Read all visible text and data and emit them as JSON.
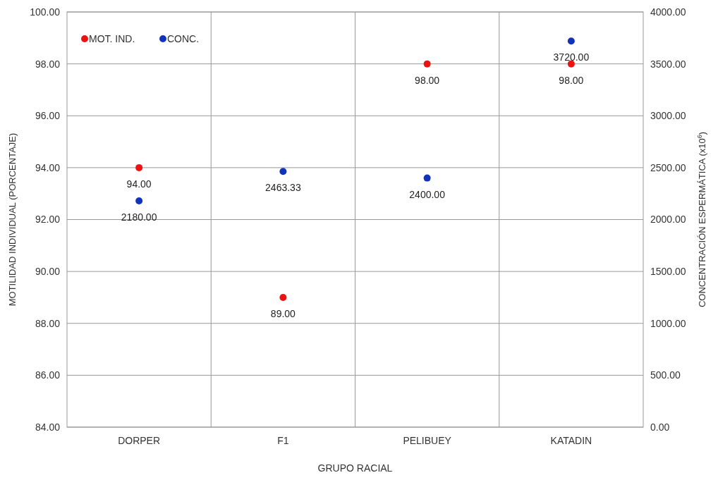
{
  "chart_data": {
    "type": "scatter",
    "xlabel": "GRUPO RACIAL",
    "ylabel": "MOTILIDAD INDIVIDUAL (PORCENTAJE)",
    "y2label": "CONCENTRACIÓN ESPERMÁTICA (x10$^{6}$)",
    "categories": [
      "DORPER",
      "F1",
      "PELIBUEY",
      "KATADIN"
    ],
    "series": [
      {
        "name": "MOT. IND.",
        "color": "#ee1111",
        "values": [
          94,
          89,
          98,
          98
        ],
        "value_labels": [
          "94.00",
          "89.00",
          "98.00",
          "98.00"
        ]
      },
      {
        "name": "CONC.",
        "color": "#1133bb",
        "axis": "y2",
        "values": [
          2180,
          2463.33,
          2400,
          3720
        ],
        "value_labels": [
          "2180.00",
          "2463.33",
          "2400.00",
          "3720.00"
        ]
      }
    ],
    "ylim": [
      84,
      100
    ],
    "yticks": [
      {
        "value": 84,
        "label": "84.00"
      },
      {
        "value": 86,
        "label": "86.00"
      },
      {
        "value": 88,
        "label": "88.00"
      },
      {
        "value": 90,
        "label": "90.00"
      },
      {
        "value": 92,
        "label": "92.00"
      },
      {
        "value": 94,
        "label": "94.00"
      },
      {
        "value": 96,
        "label": "96.00"
      },
      {
        "value": 98,
        "label": "98.00"
      },
      {
        "value": 100,
        "label": "100.00"
      }
    ],
    "y2lim": [
      0,
      4000
    ],
    "y2ticks": [
      {
        "value": 0,
        "label": "0.00"
      },
      {
        "value": 500,
        "label": "500.00"
      },
      {
        "value": 1000,
        "label": "1000.00"
      },
      {
        "value": 1500,
        "label": "1500.00"
      },
      {
        "value": 2000,
        "label": "2000.00"
      },
      {
        "value": 2500,
        "label": "2500.00"
      },
      {
        "value": 3000,
        "label": "3000.00"
      },
      {
        "value": 3500,
        "label": "3500.00"
      },
      {
        "value": 4000,
        "label": "4000.00"
      }
    ],
    "grid": true,
    "legend": "top left",
    "marker": "circle"
  }
}
